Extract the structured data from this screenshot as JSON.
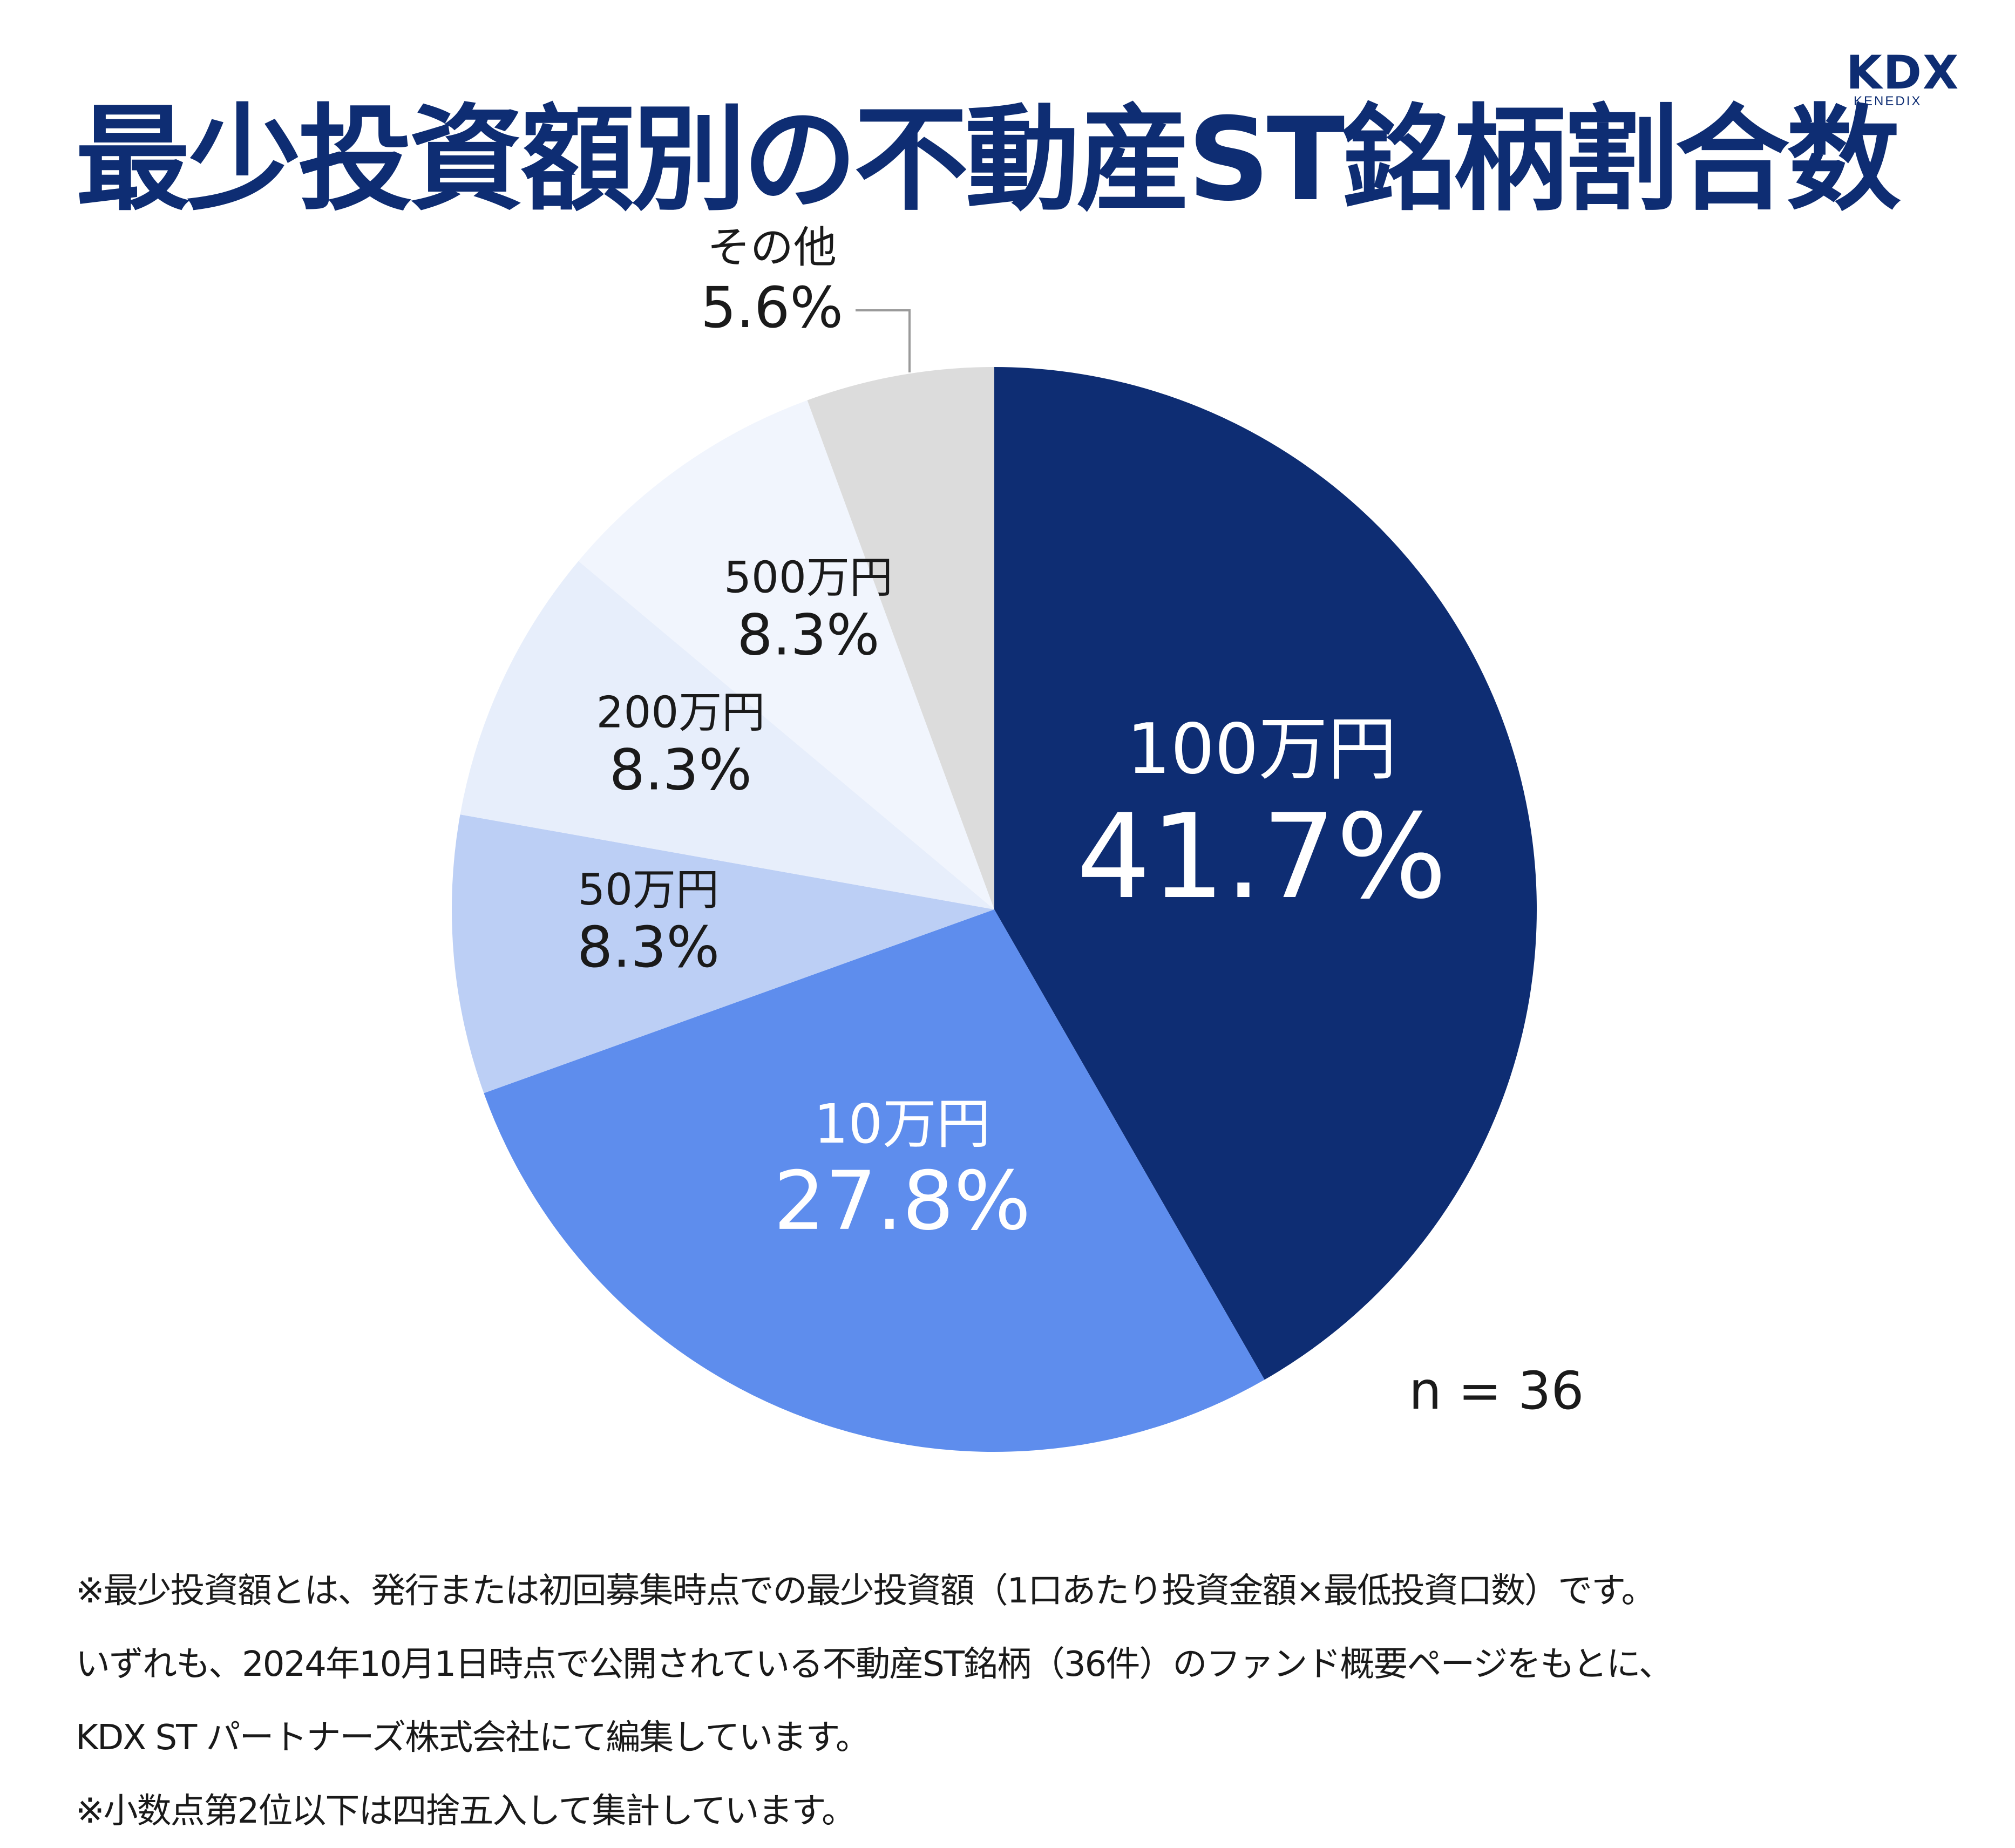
{
  "header": {
    "title": "最少投資額別の不動産ST銘柄割合数",
    "logo": {
      "main": "KDX",
      "sub": "KENEDIX"
    }
  },
  "chart_data": {
    "type": "pie",
    "title": "最少投資額別の不動産ST銘柄割合数",
    "slices": [
      {
        "label": "100万円",
        "value": 41.7,
        "display": "41.7%",
        "color": "#0e2d73",
        "text_color": "#ffffff"
      },
      {
        "label": "10万円",
        "value": 27.8,
        "display": "27.8%",
        "color": "#5e8ded",
        "text_color": "#ffffff"
      },
      {
        "label": "50万円",
        "value": 8.3,
        "display": "8.3%",
        "color": "#bccff5",
        "text_color": "#1a1a1a"
      },
      {
        "label": "200万円",
        "value": 8.3,
        "display": "8.3%",
        "color": "#e7eefb",
        "text_color": "#1a1a1a"
      },
      {
        "label": "500万円",
        "value": 8.3,
        "display": "8.3%",
        "color": "#f1f5fd",
        "text_color": "#1a1a1a"
      },
      {
        "label": "その他",
        "value": 5.6,
        "display": "5.6%",
        "color": "#dcdcdc",
        "text_color": "#1a1a1a"
      }
    ],
    "annotation": "n = 36",
    "start": "12 o'clock",
    "direction": "clockwise"
  },
  "notes": [
    "※最少投資額とは、発行または初回募集時点での最少投資額（1口あたり投資金額×最低投資口数）です。",
    "いずれも、2024年10月1日時点で公開されている不動産ST銘柄（36件）のファンド概要ページをもとに、",
    "KDX ST パートナーズ株式会社にて編集しています。",
    "※小数点第2位以下は四捨五入して集計しています。"
  ]
}
